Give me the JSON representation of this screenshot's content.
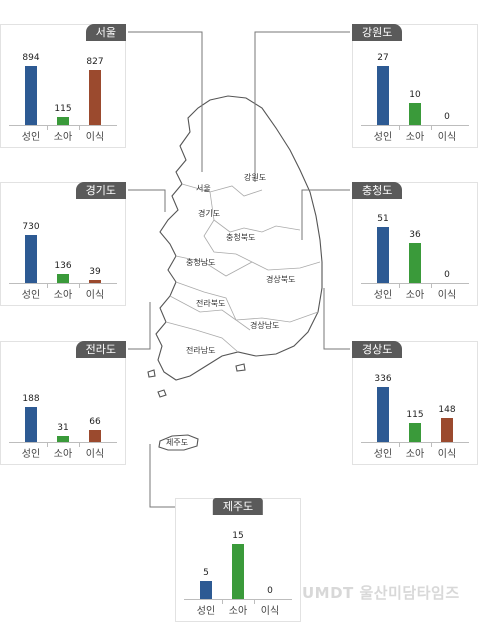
{
  "colors": {
    "adult": "#2d5a93",
    "child": "#3a9a3a",
    "transplant": "#9b4a2e",
    "title_bg": "#5a5a5a"
  },
  "categories": [
    "성인",
    "소아",
    "이식"
  ],
  "chart_data": [
    {
      "type": "bar",
      "region": "서울",
      "categories": [
        "성인",
        "소아",
        "이식"
      ],
      "values": [
        894,
        115,
        827
      ]
    },
    {
      "type": "bar",
      "region": "경기도",
      "categories": [
        "성인",
        "소아",
        "이식"
      ],
      "values": [
        730,
        136,
        39
      ]
    },
    {
      "type": "bar",
      "region": "전라도",
      "categories": [
        "성인",
        "소아",
        "이식"
      ],
      "values": [
        188,
        31,
        66
      ]
    },
    {
      "type": "bar",
      "region": "강원도",
      "categories": [
        "성인",
        "소아",
        "이식"
      ],
      "values": [
        27,
        10,
        0
      ]
    },
    {
      "type": "bar",
      "region": "충청도",
      "categories": [
        "성인",
        "소아",
        "이식"
      ],
      "values": [
        51,
        36,
        0
      ]
    },
    {
      "type": "bar",
      "region": "경상도",
      "categories": [
        "성인",
        "소아",
        "이식"
      ],
      "values": [
        336,
        115,
        148
      ]
    },
    {
      "type": "bar",
      "region": "제주도",
      "categories": [
        "성인",
        "소아",
        "이식"
      ],
      "values": [
        5,
        15,
        0
      ]
    }
  ],
  "map_labels": [
    "서울",
    "경기도",
    "강원도",
    "충청북도",
    "충청남도",
    "경상북도",
    "전라북도",
    "경상남도",
    "전라남도",
    "제주도"
  ],
  "watermark": "UMDT 울산미담타임즈"
}
